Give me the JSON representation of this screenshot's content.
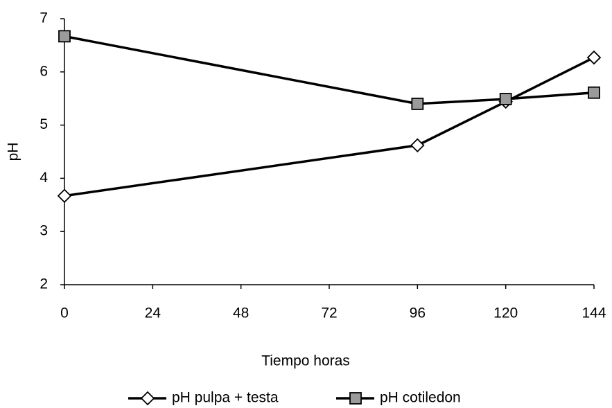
{
  "chart_data": {
    "type": "line",
    "x_label": "Tiempo horas",
    "y_label": "pH",
    "x": [
      0,
      96,
      120,
      144
    ],
    "series": [
      {
        "name": "pH pulpa + testa",
        "color": "#000000",
        "values": [
          3.67,
          4.62,
          5.44,
          6.27
        ]
      },
      {
        "name": "pH cotiledon",
        "color": "#000000",
        "values": [
          6.67,
          5.4,
          5.49,
          5.61
        ]
      }
    ],
    "xlim": [
      0,
      144
    ],
    "xticks": [
      0,
      24,
      48,
      72,
      96,
      120,
      144
    ],
    "ylim": [
      2,
      7
    ],
    "yticks": [
      2,
      3,
      4,
      5,
      6,
      7
    ],
    "grid": false,
    "legend": "bottom"
  }
}
